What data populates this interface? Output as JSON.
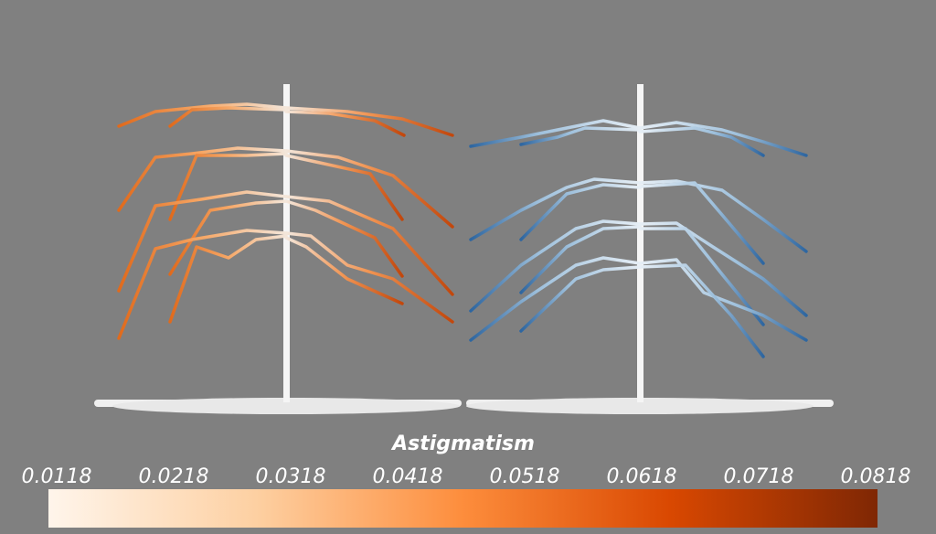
{
  "colorbar": {
    "title": "Astigmatism",
    "ticks": [
      0.0118,
      0.0218,
      0.0318,
      0.0418,
      0.0518,
      0.0618,
      0.0718,
      0.0818
    ]
  }
}
